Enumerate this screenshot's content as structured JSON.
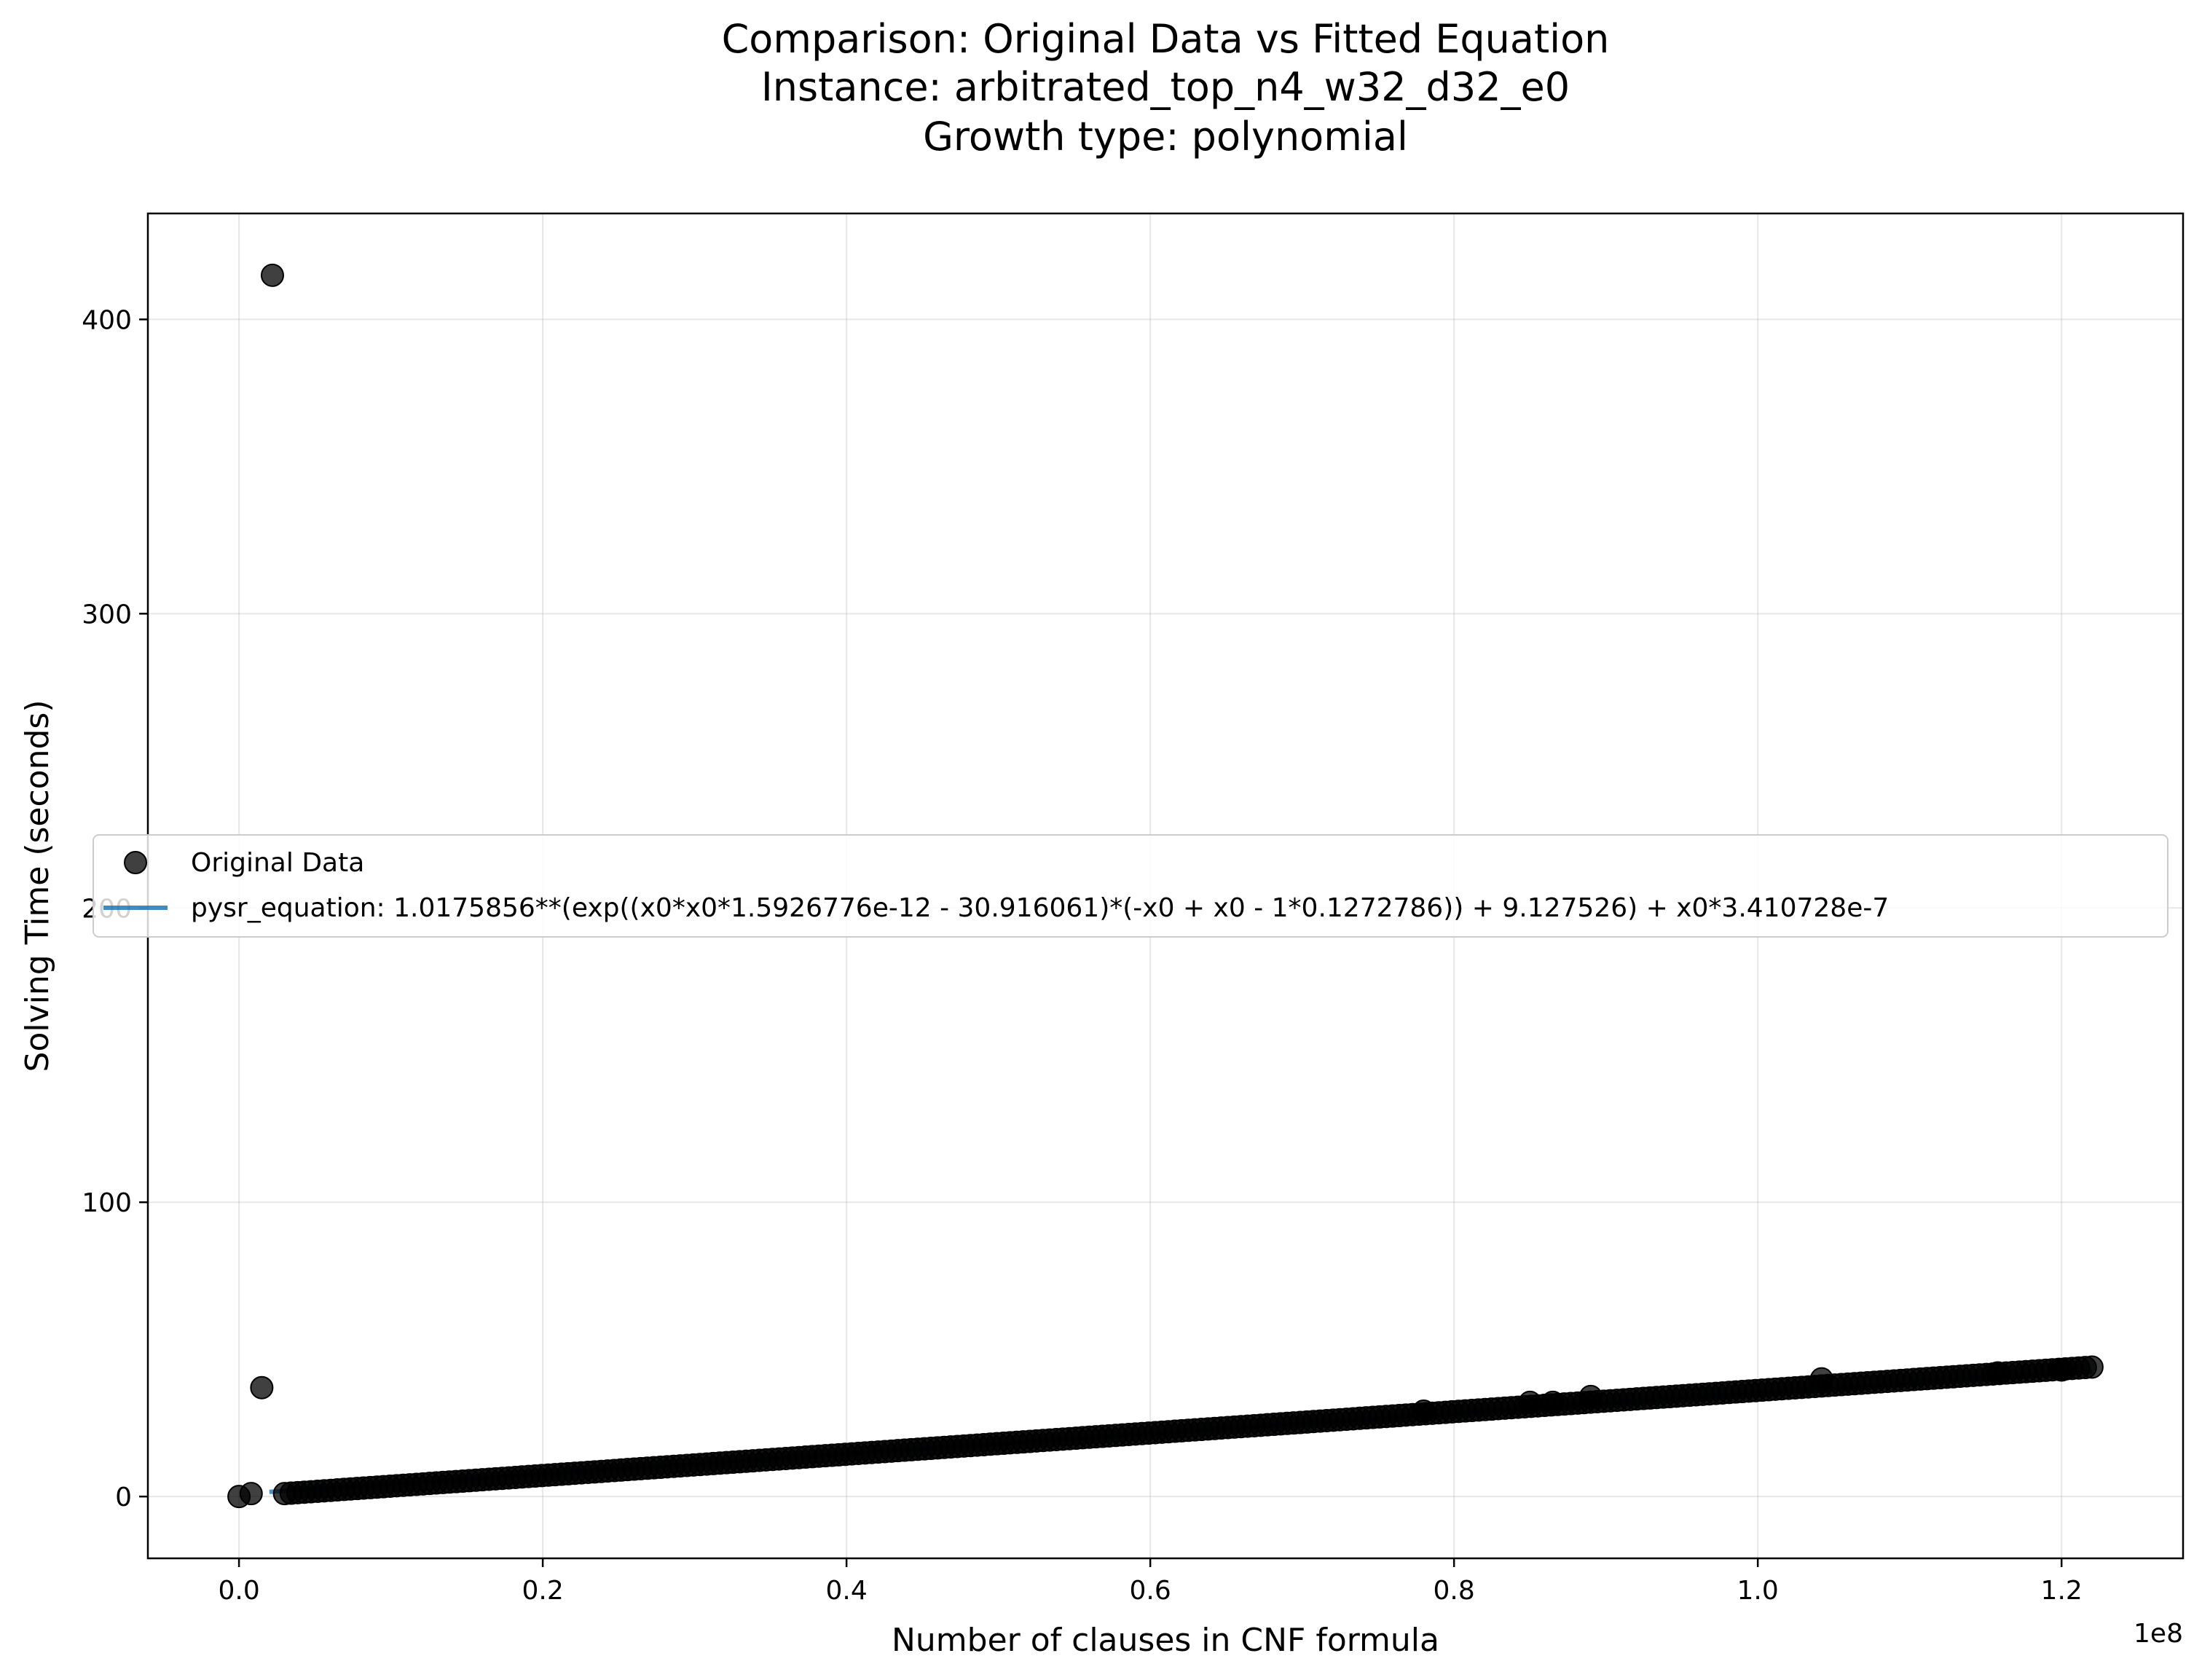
{
  "chart_data": {
    "type": "scatter",
    "title": [
      "Comparison: Original Data vs Fitted Equation",
      "Instance: arbitrated_top_n4_w32_d32_e0",
      "Growth type: polynomial"
    ],
    "xlabel": "Number of clauses in CNF formula",
    "ylabel": "Solving Time (seconds)",
    "x_multiplier_label": "1e8",
    "x_ticks": [
      0.0,
      0.2,
      0.4,
      0.6,
      0.8,
      1.0,
      1.2
    ],
    "x_tick_labels": [
      "0.0",
      "0.2",
      "0.4",
      "0.6",
      "0.8",
      "1.0",
      "1.2"
    ],
    "y_ticks": [
      0,
      100,
      200,
      300,
      400
    ],
    "y_tick_labels": [
      "0",
      "100",
      "200",
      "300",
      "400"
    ],
    "xlim": [
      -0.06,
      1.28
    ],
    "ylim": [
      -21,
      436
    ],
    "grid": true,
    "legend_position": "center-left",
    "series": [
      {
        "name": "Original Data",
        "kind": "scatter",
        "color": "#000000",
        "x_start": 0.03,
        "x_end": 1.22,
        "y_start": 1,
        "y_end": 44,
        "point_count": 275,
        "outliers": [
          {
            "x": 0.0,
            "y": 0
          },
          {
            "x": 0.008,
            "y": 1
          },
          {
            "x": 0.015,
            "y": 37
          },
          {
            "x": 0.022,
            "y": 415
          },
          {
            "x": 0.78,
            "y": 29
          },
          {
            "x": 0.85,
            "y": 32
          },
          {
            "x": 0.865,
            "y": 32
          },
          {
            "x": 0.89,
            "y": 34
          },
          {
            "x": 1.042,
            "y": 40
          },
          {
            "x": 1.158,
            "y": 42
          },
          {
            "x": 1.2,
            "y": 43
          }
        ]
      },
      {
        "name": "pysr_equation: 1.0175856**(exp((x0*x0*1.5926776e-12 - 30.916061)*(-x0 + x0 - 1*0.1272786)) + 9.127526) + x0*3.410728e-7",
        "kind": "line",
        "color": "#1f77b4",
        "x": [
          0.02,
          0.03,
          0.2,
          0.4,
          0.6,
          0.8,
          1.0,
          1.22
        ],
        "y": [
          1.6,
          1.9,
          7.7,
          14.5,
          21.3,
          28.1,
          35.0,
          42.5
        ]
      }
    ]
  }
}
